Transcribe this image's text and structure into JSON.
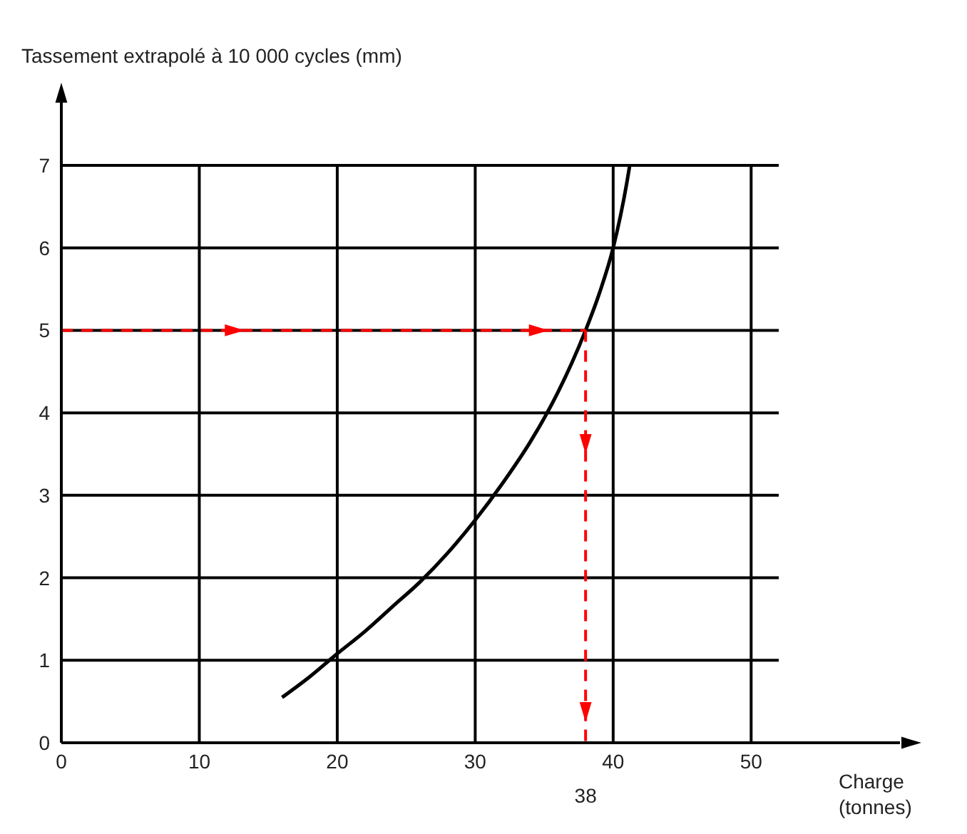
{
  "chart_data": {
    "type": "line",
    "ylabel": "Tassement extrapolé à 10 000 cycles (mm)",
    "xlabel": "Charge (tonnes)",
    "xlim": [
      0,
      52
    ],
    "ylim": [
      0,
      7
    ],
    "xticks": [
      0,
      10,
      20,
      30,
      40,
      50
    ],
    "yticks": [
      0,
      1,
      2,
      3,
      4,
      5,
      6,
      7
    ],
    "grid": true,
    "marker": "none",
    "series": [
      {
        "color": "#000000",
        "line_style": "solid",
        "x": [
          16,
          18,
          20,
          22,
          24,
          26,
          28,
          30,
          32,
          34,
          36,
          38,
          39,
          40,
          41,
          41.2
        ],
        "values": [
          0.55,
          0.8,
          1.08,
          1.35,
          1.65,
          1.95,
          2.3,
          2.7,
          3.15,
          3.65,
          4.25,
          5,
          5.45,
          6,
          6.8,
          7
        ]
      },
      {
        "color": "#ff0000",
        "line_style": "dashed",
        "x": [
          0,
          38
        ],
        "values": [
          5,
          5
        ]
      },
      {
        "color": "#ff0000",
        "line_style": "dashed",
        "x": [
          38,
          38
        ],
        "values": [
          5,
          0
        ]
      }
    ],
    "annotations": [
      {
        "text": "38",
        "x": 38,
        "y": 0
      }
    ]
  }
}
